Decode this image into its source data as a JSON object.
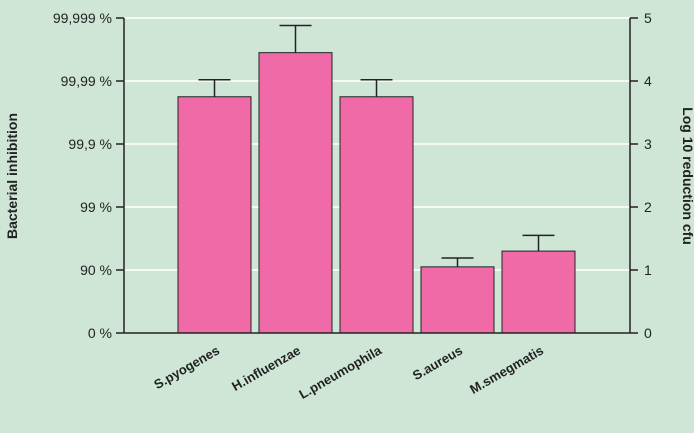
{
  "colors": {
    "background": "#cfe6d6",
    "bar": "#f06aa8",
    "axis": "#222222",
    "grid": "#ffffff"
  },
  "chart_data": {
    "type": "bar",
    "categories": [
      "S.pyogenes",
      "H.influenzae",
      "L.pneumophila",
      "S.aureus",
      "M.smegmatis"
    ],
    "series": [
      {
        "values": [
          3.75,
          4.45,
          3.75,
          1.05,
          1.3
        ],
        "errors": [
          0.27,
          0.43,
          0.27,
          0.14,
          0.25
        ]
      }
    ],
    "ylabel_left": "Bacterial inhibition",
    "ylabel_right": "Log 10 reduction cfu",
    "left_ticks": [
      {
        "value": 0,
        "label": "0 %"
      },
      {
        "value": 1,
        "label": "90 %"
      },
      {
        "value": 2,
        "label": "99 %"
      },
      {
        "value": 3,
        "label": "99,9 %"
      },
      {
        "value": 4,
        "label": "99,99 %"
      },
      {
        "value": 5,
        "label": "99,999 %"
      }
    ],
    "right_ticks": [
      {
        "value": 0,
        "label": "0"
      },
      {
        "value": 1,
        "label": "1"
      },
      {
        "value": 2,
        "label": "2"
      },
      {
        "value": 3,
        "label": "3"
      },
      {
        "value": 4,
        "label": "4"
      },
      {
        "value": 5,
        "label": "5"
      }
    ],
    "ylim": [
      0,
      5
    ],
    "grid": true,
    "legend": "none"
  }
}
